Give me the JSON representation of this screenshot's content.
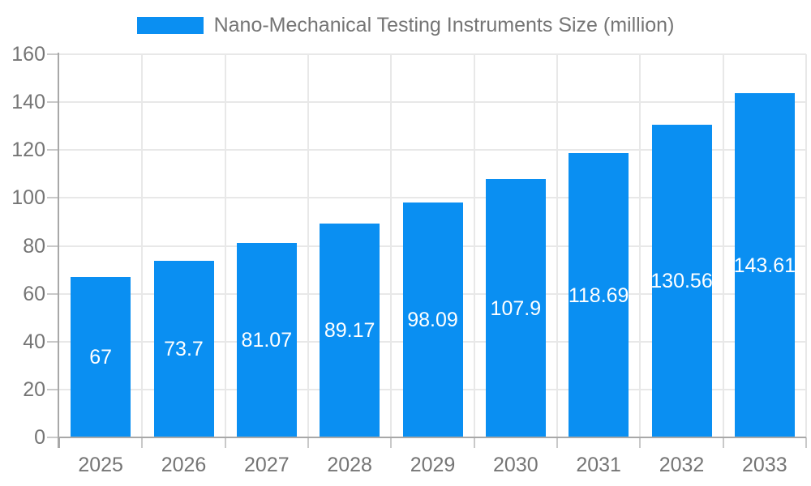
{
  "chart_data": {
    "type": "bar",
    "title": "Nano-Mechanical Testing Instruments Size (million)",
    "legend_entries": [
      "Nano-Mechanical Testing Instruments Size (million)"
    ],
    "legend_position": "top-center",
    "categories": [
      "2025",
      "2026",
      "2027",
      "2028",
      "2029",
      "2030",
      "2031",
      "2032",
      "2033"
    ],
    "values": [
      67,
      73.7,
      81.07,
      89.17,
      98.09,
      107.9,
      118.69,
      130.56,
      143.61
    ],
    "value_labels": [
      "67",
      "73.7",
      "81.07",
      "89.17",
      "98.09",
      "107.9",
      "118.69",
      "130.56",
      "143.61"
    ],
    "xlabel": "",
    "ylabel": "",
    "ylim": [
      0,
      160
    ],
    "yticks": [
      0,
      20,
      40,
      60,
      80,
      100,
      120,
      140,
      160
    ],
    "grid": true,
    "value_label_placement": "centered-inside-bar",
    "colors": {
      "bar": "#0a8ff2",
      "axis": "#a8a8a8",
      "gridline": "#e8e8e8",
      "tick": "#c9c9c9",
      "tick_text": "#757575",
      "legend_text": "#757575",
      "value_label_text": "#ffffff",
      "background": "#ffffff"
    }
  }
}
